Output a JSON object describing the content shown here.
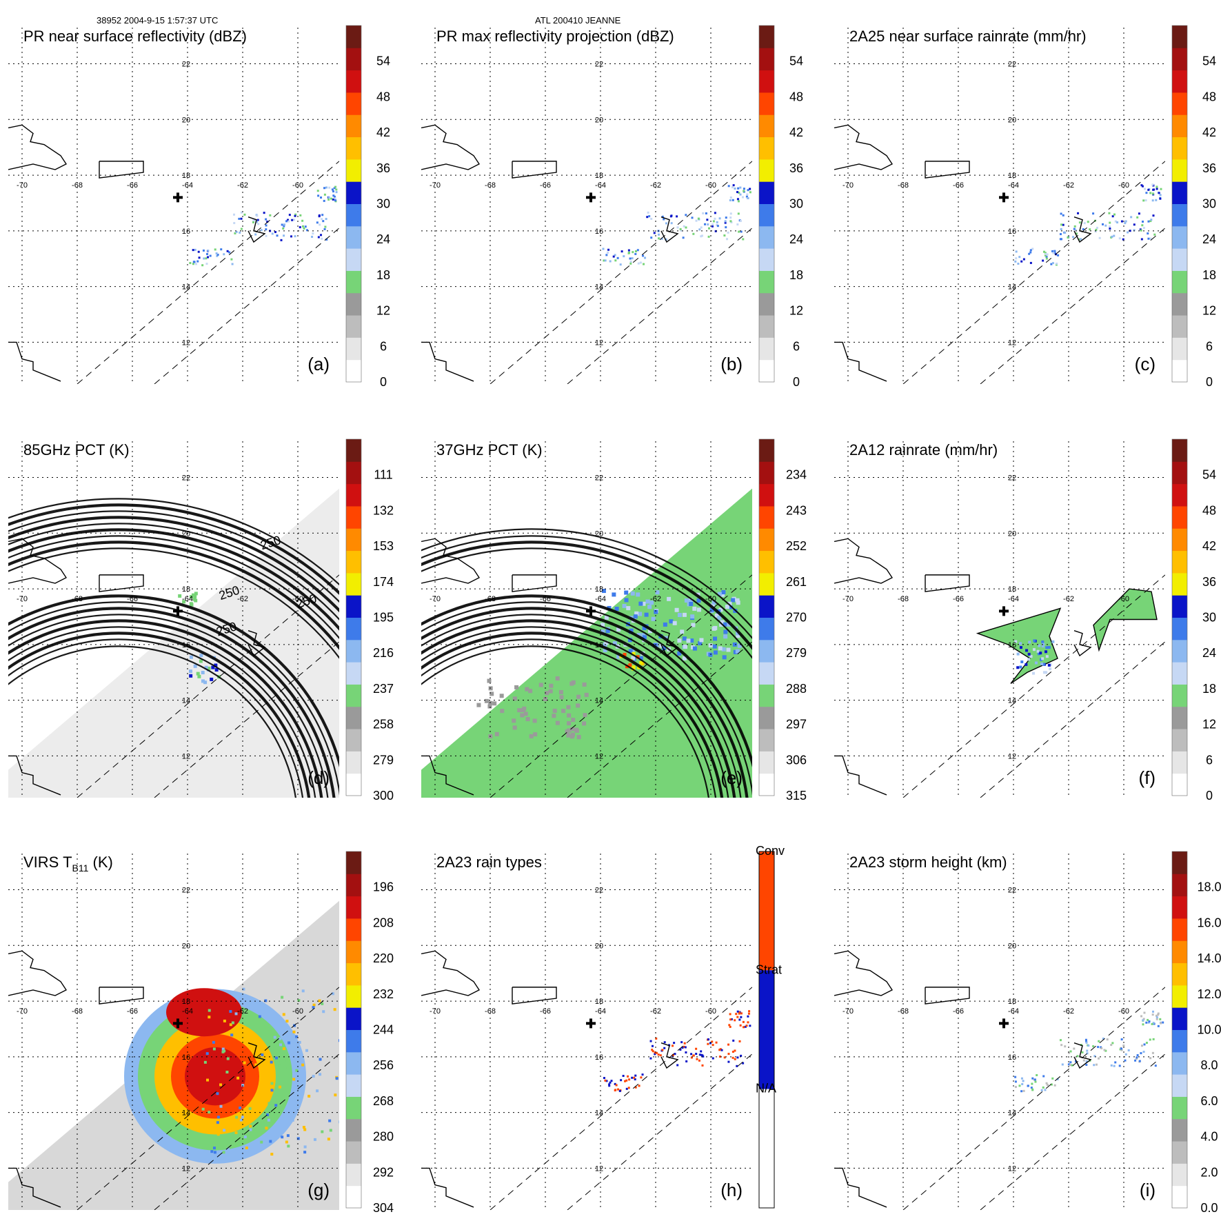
{
  "header": {
    "left": "38952 2004-9-15 1:57:37 UTC",
    "center": "ATL 200410 JEANNE"
  },
  "colors": {
    "palette": [
      "#ffffff",
      "#e6e6e6",
      "#bdbdbd",
      "#9a9a9a",
      "#77d477",
      "#c6d8f4",
      "#8cb8f0",
      "#3e7bea",
      "#0a14c8",
      "#f2ee00",
      "#ffbf00",
      "#ff8a00",
      "#ff4500",
      "#d01010",
      "#a31010",
      "#6b1b14"
    ],
    "strat": "#0a14c8",
    "conv": "#ff4500"
  },
  "icons": [
    "storm-center-plus-icon"
  ],
  "chart_data": [
    {
      "id": "a",
      "type": "heatmap",
      "title": "PR near surface reflectivity (dBZ)",
      "panel_label": "(a)",
      "colorbar_ticks": [
        "0",
        "6",
        "12",
        "18",
        "24",
        "30",
        "36",
        "42",
        "48",
        "54"
      ],
      "x_ticks": [
        "-70",
        "-68",
        "-66",
        "-64",
        "-62",
        "-60"
      ],
      "y_ticks": [
        "12",
        "14",
        "16",
        "18",
        "20",
        "22"
      ],
      "xlim": [
        -70.5,
        -58.5
      ],
      "ylim": [
        10.5,
        23.3
      ]
    },
    {
      "id": "b",
      "type": "heatmap",
      "title": "PR max reflectivity projection (dBZ)",
      "panel_label": "(b)",
      "colorbar_ticks": [
        "0",
        "6",
        "12",
        "18",
        "24",
        "30",
        "36",
        "42",
        "48",
        "54"
      ],
      "x_ticks": [
        "-70",
        "-68",
        "-66",
        "-64",
        "-62",
        "-60"
      ],
      "y_ticks": [
        "12",
        "14",
        "16",
        "18",
        "20",
        "22"
      ],
      "xlim": [
        -70.5,
        -58.5
      ],
      "ylim": [
        10.5,
        23.3
      ]
    },
    {
      "id": "c",
      "type": "heatmap",
      "title": "2A25 near surface rainrate (mm/hr)",
      "panel_label": "(c)",
      "colorbar_ticks": [
        "0",
        "6",
        "12",
        "18",
        "24",
        "30",
        "36",
        "42",
        "48",
        "54"
      ],
      "x_ticks": [
        "-70",
        "-68",
        "-66",
        "-64",
        "-62",
        "-60"
      ],
      "y_ticks": [
        "12",
        "14",
        "16",
        "18",
        "20",
        "22"
      ],
      "xlim": [
        -70.5,
        -58.5
      ],
      "ylim": [
        10.5,
        23.3
      ]
    },
    {
      "id": "d",
      "type": "heatmap",
      "title": "85GHz PCT (K)",
      "panel_label": "(d)",
      "colorbar_ticks": [
        "300",
        "279",
        "258",
        "237",
        "216",
        "195",
        "174",
        "153",
        "132",
        "111"
      ],
      "contour_labels": [
        "250",
        "250",
        "250",
        "250"
      ],
      "x_ticks": [
        "-70",
        "-68",
        "-66",
        "-64",
        "-62",
        "-60"
      ],
      "y_ticks": [
        "12",
        "14",
        "16",
        "18",
        "20",
        "22"
      ],
      "xlim": [
        -70.5,
        -58.5
      ],
      "ylim": [
        10.5,
        23.3
      ]
    },
    {
      "id": "e",
      "type": "heatmap",
      "title": "37GHz PCT (K)",
      "panel_label": "(e)",
      "colorbar_ticks": [
        "315",
        "306",
        "297",
        "288",
        "279",
        "270",
        "261",
        "252",
        "243",
        "234"
      ],
      "x_ticks": [
        "-70",
        "-68",
        "-66",
        "-64",
        "-62",
        "-60"
      ],
      "y_ticks": [
        "12",
        "14",
        "16",
        "18",
        "20",
        "22"
      ],
      "xlim": [
        -70.5,
        -58.5
      ],
      "ylim": [
        10.5,
        23.3
      ]
    },
    {
      "id": "f",
      "type": "heatmap",
      "title": "2A12 rainrate (mm/hr)",
      "panel_label": "(f)",
      "colorbar_ticks": [
        "0",
        "6",
        "12",
        "18",
        "24",
        "30",
        "36",
        "42",
        "48",
        "54"
      ],
      "x_ticks": [
        "-70",
        "-68",
        "-66",
        "-64",
        "-62",
        "-60"
      ],
      "y_ticks": [
        "12",
        "14",
        "16",
        "18",
        "20",
        "22"
      ],
      "xlim": [
        -70.5,
        -58.5
      ],
      "ylim": [
        10.5,
        23.3
      ]
    },
    {
      "id": "g",
      "type": "heatmap",
      "title": "VIRS T",
      "title_sub": "B11",
      "title_suffix": " (K)",
      "panel_label": "(g)",
      "colorbar_ticks": [
        "304",
        "292",
        "280",
        "268",
        "256",
        "244",
        "232",
        "220",
        "208",
        "196"
      ],
      "x_ticks": [
        "-70",
        "-68",
        "-66",
        "-64",
        "-62",
        "-60"
      ],
      "y_ticks": [
        "12",
        "14",
        "16",
        "18",
        "20",
        "22"
      ],
      "xlim": [
        -70.5,
        -58.5
      ],
      "ylim": [
        10.5,
        23.3
      ]
    },
    {
      "id": "h",
      "type": "heatmap",
      "title": "2A23 rain types",
      "panel_label": "(h)",
      "colorbar_ticks": [
        "N/A",
        "Strat",
        "Conv"
      ],
      "x_ticks": [
        "-70",
        "-68",
        "-66",
        "-64",
        "-62",
        "-60"
      ],
      "y_ticks": [
        "12",
        "14",
        "16",
        "18",
        "20",
        "22"
      ],
      "xlim": [
        -70.5,
        -58.5
      ],
      "ylim": [
        10.5,
        23.3
      ]
    },
    {
      "id": "i",
      "type": "heatmap",
      "title": "2A23 storm height (km)",
      "panel_label": "(i)",
      "colorbar_ticks": [
        "0.0",
        "2.0",
        "4.0",
        "6.0",
        "8.0",
        "10.0",
        "12.0",
        "14.0",
        "16.0",
        "18.0"
      ],
      "x_ticks": [
        "-70",
        "-68",
        "-66",
        "-64",
        "-62",
        "-60"
      ],
      "y_ticks": [
        "12",
        "14",
        "16",
        "18",
        "20",
        "22"
      ],
      "xlim": [
        -70.5,
        -58.5
      ],
      "ylim": [
        10.5,
        23.3
      ]
    }
  ]
}
